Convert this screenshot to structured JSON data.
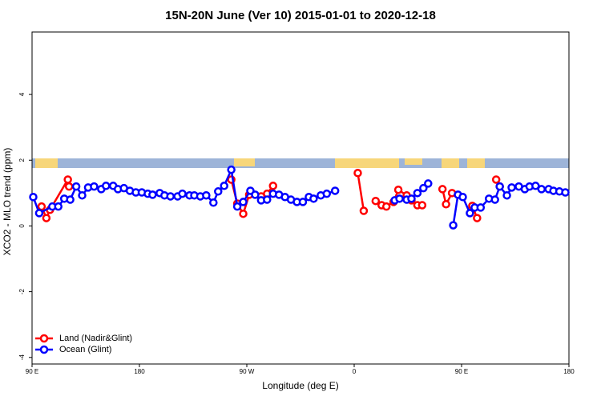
{
  "chart_data": {
    "type": "line",
    "title": "15N-20N June (Ver 10)   2015-01-01 to 2020-12-18",
    "x_label": "Longitude (deg E)",
    "y_label": "XCO2 - MLO trend (ppm)",
    "xlim": [
      90,
      540
    ],
    "xticks": [
      {
        "value": 90,
        "label": "90 E"
      },
      180,
      {
        "value": 270,
        "label": "90 W"
      },
      {
        "value": 360,
        "label": "0"
      },
      {
        "value": 450,
        "label": "90 E"
      },
      {
        "value": 540,
        "label": "180"
      }
    ],
    "ylim": [
      -4.2,
      5.9
    ],
    "yticks": [
      -4,
      -2,
      0,
      2,
      4
    ],
    "legend": "bottom-left",
    "series": [
      {
        "name": "Land (Nadir&Glint)",
        "color": "#ff0000",
        "x": [
          98,
          102,
          105,
          120,
          121,
          null,
          257,
          262,
          267,
          272,
          282,
          287,
          292,
          null,
          363,
          368,
          null,
          378,
          383,
          387,
          393,
          397,
          404,
          408,
          413,
          417,
          null,
          434,
          437,
          442,
          null,
          459,
          463,
          null,
          479,
          482
        ],
        "values": [
          0.59,
          0.24,
          0.49,
          1.41,
          1.2,
          null,
          1.41,
          0.68,
          0.37,
          0.95,
          0.9,
          0.98,
          1.22,
          null,
          1.61,
          0.46,
          null,
          0.76,
          0.63,
          0.59,
          0.73,
          1.1,
          0.93,
          0.78,
          0.63,
          0.63,
          null,
          1.12,
          0.66,
          1.0,
          null,
          0.61,
          0.24,
          null,
          1.41,
          1.2
        ]
      },
      {
        "name": "Ocean (Glint)",
        "color": "#0000ff",
        "x": [
          91,
          96,
          107,
          112,
          117,
          122,
          127,
          132,
          137,
          142,
          148,
          152,
          158,
          162,
          167,
          172,
          177,
          182,
          187,
          191,
          197,
          201,
          206,
          212,
          216,
          222,
          226,
          231,
          236,
          242,
          246,
          251,
          257,
          262,
          267,
          273,
          277,
          282,
          287,
          292,
          297,
          302,
          307,
          312,
          317,
          322,
          326,
          332,
          337,
          344,
          null,
          394,
          398,
          404,
          408,
          413,
          418,
          422,
          null,
          443,
          447,
          451,
          457,
          461,
          466,
          473,
          478,
          482,
          488,
          492,
          498,
          503,
          507,
          512,
          517,
          523,
          527,
          532,
          537
        ],
        "values": [
          0.88,
          0.39,
          0.59,
          0.59,
          0.83,
          0.8,
          1.2,
          0.93,
          1.17,
          1.2,
          1.12,
          1.22,
          1.22,
          1.12,
          1.15,
          1.07,
          1.02,
          1.02,
          0.98,
          0.95,
          1.0,
          0.93,
          0.9,
          0.9,
          0.98,
          0.93,
          0.93,
          0.9,
          0.93,
          0.71,
          1.05,
          1.22,
          1.71,
          0.59,
          0.73,
          1.07,
          0.95,
          0.78,
          0.8,
          0.98,
          0.95,
          0.88,
          0.8,
          0.73,
          0.73,
          0.88,
          0.83,
          0.93,
          0.98,
          1.07,
          null,
          0.78,
          0.83,
          0.8,
          0.83,
          1.0,
          1.15,
          1.29,
          null,
          0.02,
          0.95,
          0.88,
          0.39,
          0.56,
          0.56,
          0.83,
          0.8,
          1.2,
          0.93,
          1.17,
          1.2,
          1.12,
          1.2,
          1.22,
          1.12,
          1.12,
          1.07,
          1.05,
          1.02
        ]
      }
    ]
  }
}
